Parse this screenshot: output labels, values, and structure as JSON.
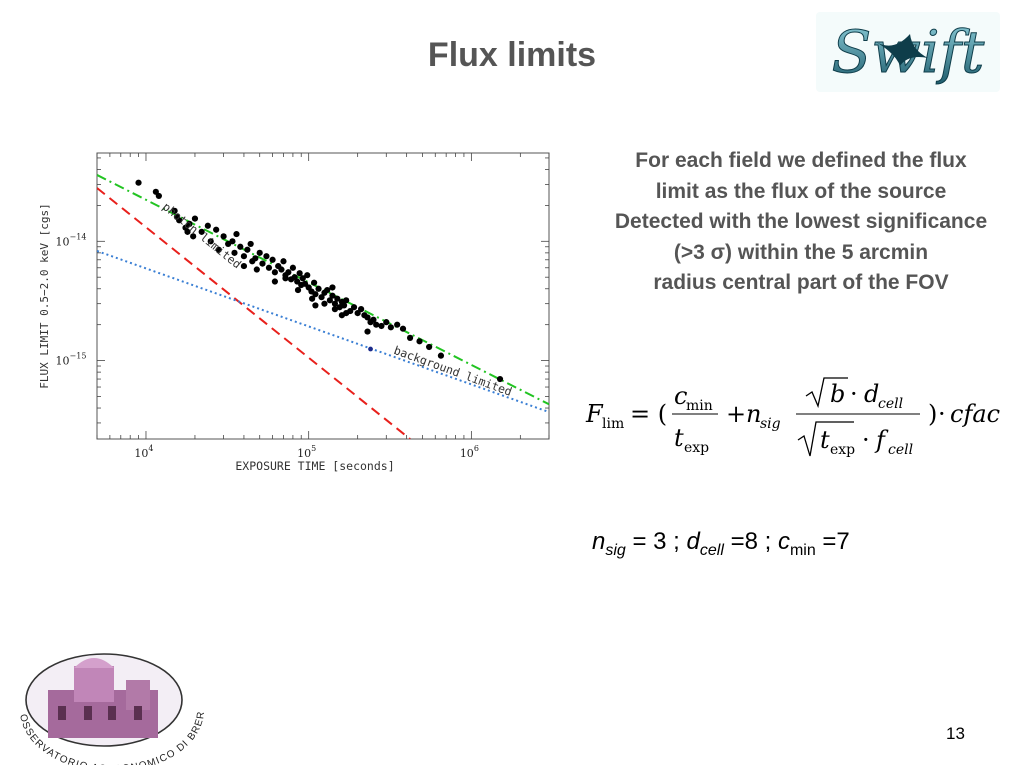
{
  "slide": {
    "title": "Flux limits",
    "page_number": "13",
    "description_lines": [
      "For each field we defined the flux",
      "limit as the flux  of the source",
      "Detected with the lowest significance",
      "(>3 σ) within the 5 arcmin",
      "radius central  part of the FOV"
    ],
    "params": {
      "nsig_sym": "n",
      "nsig_sub": "sig",
      "nsig_val": "= 3  ;   ",
      "dcell_sym": "d",
      "dcell_sub": "cell",
      "dcell_val": " =8  ; ",
      "cmin_sym": "c",
      "cmin_sub": "min",
      "cmin_val": " =7"
    },
    "formula": {
      "F": "F",
      "lim": "lim",
      "eq": "= (",
      "c": "c",
      "min": "min",
      "t": "t",
      "exp": "exp",
      "plus": "+",
      "n": "n",
      "sig": "sig",
      "b": "b",
      "dot": "·",
      "d": "d",
      "cell": "cell",
      "f": "f",
      "close": ")",
      "cfac": "cfac"
    },
    "logos": {
      "swift_text": "Swift",
      "brera_text": "OSSERVATORIO ASTRONOMICO DI BRERA"
    }
  },
  "chart_data": {
    "type": "scatter",
    "xlabel": "EXPOSURE TIME [seconds]",
    "ylabel": "FLUX LIMIT 0.5−2.0 keV [cgs]",
    "x_scale": "log",
    "y_scale": "log",
    "xlim": [
      5000,
      3000000
    ],
    "ylim": [
      2.2e-16,
      5.5e-14
    ],
    "x_ticks": [
      {
        "value": 10000,
        "base": "10",
        "exp": "4"
      },
      {
        "value": 100000,
        "base": "10",
        "exp": "5"
      },
      {
        "value": 1000000,
        "base": "10",
        "exp": "6"
      }
    ],
    "y_ticks": [
      {
        "value": 1e-14,
        "base": "10",
        "exp": "−14"
      },
      {
        "value": 1e-15,
        "base": "10",
        "exp": "−15"
      }
    ],
    "lines": [
      {
        "label": "photon limited",
        "style": "dashed",
        "color": "#e8201c",
        "points": [
          [
            5000,
            2.8e-14
          ],
          [
            420000,
            2.2e-16
          ]
        ]
      },
      {
        "label": "background limited",
        "style": "dotted",
        "color": "#3a7fd4",
        "points": [
          [
            5000,
            8.3e-15
          ],
          [
            3000000,
            3.7e-16
          ]
        ]
      },
      {
        "label": "",
        "style": "dashdot",
        "color": "#22c422",
        "points": [
          [
            5000,
            3.6e-14
          ],
          [
            3000000,
            4.3e-16
          ]
        ]
      }
    ],
    "annotations": [
      "photon limited",
      "background limited"
    ],
    "points": [
      [
        9000,
        3.1e-14
      ],
      [
        11500,
        2.6e-14
      ],
      [
        12000,
        2.4e-14
      ],
      [
        15000,
        1.8e-14
      ],
      [
        15500,
        1.6e-14
      ],
      [
        16000,
        1.5e-14
      ],
      [
        17500,
        1.3e-14
      ],
      [
        18000,
        1.2e-14
      ],
      [
        18500,
        1.4e-14
      ],
      [
        19500,
        1.1e-14
      ],
      [
        20000,
        1.55e-14
      ],
      [
        22000,
        1.2e-14
      ],
      [
        24000,
        1.35e-14
      ],
      [
        25000,
        1e-14
      ],
      [
        27000,
        1.25e-14
      ],
      [
        28000,
        8.5e-15
      ],
      [
        30000,
        1.1e-14
      ],
      [
        32000,
        9.5e-15
      ],
      [
        34000,
        1e-14
      ],
      [
        35000,
        8e-15
      ],
      [
        36000,
        1.15e-14
      ],
      [
        38000,
        9e-15
      ],
      [
        40000,
        7.5e-15
      ],
      [
        42000,
        8.5e-15
      ],
      [
        44000,
        9.5e-15
      ],
      [
        45000,
        6.8e-15
      ],
      [
        47000,
        7.2e-15
      ],
      [
        50000,
        8e-15
      ],
      [
        52000,
        6.5e-15
      ],
      [
        55000,
        7.5e-15
      ],
      [
        57000,
        6e-15
      ],
      [
        60000,
        7e-15
      ],
      [
        62000,
        5.5e-15
      ],
      [
        65000,
        6.2e-15
      ],
      [
        68000,
        5.8e-15
      ],
      [
        70000,
        6.8e-15
      ],
      [
        72000,
        5.2e-15
      ],
      [
        75000,
        5.5e-15
      ],
      [
        78000,
        4.8e-15
      ],
      [
        80000,
        6e-15
      ],
      [
        82000,
        5e-15
      ],
      [
        85000,
        4.6e-15
      ],
      [
        88000,
        5.4e-15
      ],
      [
        90000,
        4.3e-15
      ],
      [
        92000,
        4.9e-15
      ],
      [
        95000,
        4.4e-15
      ],
      [
        98000,
        5.2e-15
      ],
      [
        100000,
        4.1e-15
      ],
      [
        104000,
        3.8e-15
      ],
      [
        108000,
        4.5e-15
      ],
      [
        110000,
        3.6e-15
      ],
      [
        115000,
        4e-15
      ],
      [
        120000,
        3.4e-15
      ],
      [
        125000,
        3.7e-15
      ],
      [
        130000,
        3.9e-15
      ],
      [
        135000,
        3.2e-15
      ],
      [
        140000,
        3.5e-15
      ],
      [
        145000,
        3e-15
      ],
      [
        150000,
        3.3e-15
      ],
      [
        155000,
        2.8e-15
      ],
      [
        160000,
        3.1e-15
      ],
      [
        165000,
        2.9e-15
      ],
      [
        170000,
        3.2e-15
      ],
      [
        180000,
        2.6e-15
      ],
      [
        190000,
        2.8e-15
      ],
      [
        200000,
        2.5e-15
      ],
      [
        210000,
        2.7e-15
      ],
      [
        220000,
        2.4e-15
      ],
      [
        230000,
        2.3e-15
      ],
      [
        240000,
        2.1e-15
      ],
      [
        250000,
        2.2e-15
      ],
      [
        260000,
        2e-15
      ],
      [
        280000,
        1.95e-15
      ],
      [
        300000,
        2.1e-15
      ],
      [
        320000,
        1.9e-15
      ],
      [
        350000,
        2e-15
      ],
      [
        380000,
        1.85e-15
      ],
      [
        420000,
        1.55e-15
      ],
      [
        480000,
        1.45e-15
      ],
      [
        550000,
        1.3e-15
      ],
      [
        650000,
        1.1e-15
      ],
      [
        1500000,
        7e-16
      ],
      [
        62000,
        4.6e-15
      ],
      [
        72000,
        4.9e-15
      ],
      [
        86000,
        3.9e-15
      ],
      [
        105000,
        3.3e-15
      ],
      [
        125000,
        3e-15
      ],
      [
        145000,
        2.7e-15
      ],
      [
        170000,
        2.5e-15
      ],
      [
        140000,
        4.1e-15
      ],
      [
        48000,
        5.8e-15
      ],
      [
        40000,
        6.2e-15
      ],
      [
        110000,
        2.9e-15
      ],
      [
        160000,
        2.4e-15
      ],
      [
        230000,
        1.75e-15
      ]
    ],
    "special_points": [
      [
        240000,
        1.25e-15
      ]
    ]
  }
}
